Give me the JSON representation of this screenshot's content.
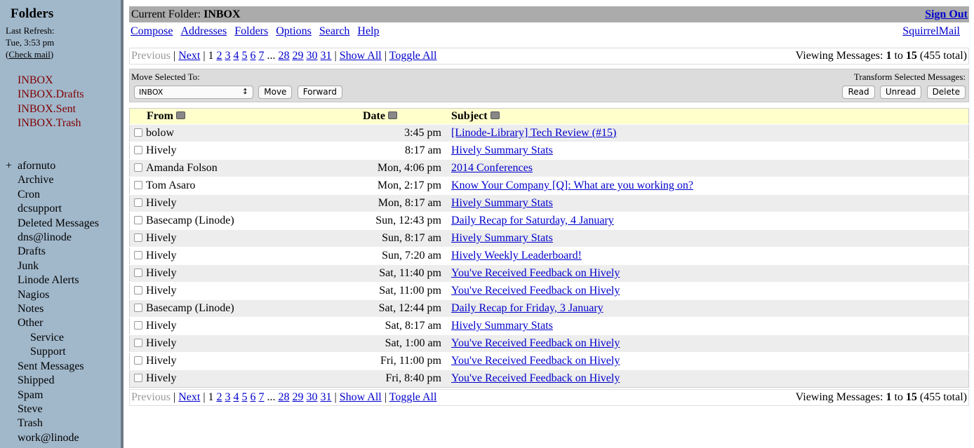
{
  "sidebar": {
    "title": "Folders",
    "last_refresh_label": "Last Refresh:",
    "last_refresh": "Tue, 3:53 pm",
    "check_mail": "Check mail",
    "special_folders": [
      "INBOX",
      "INBOX.Drafts",
      "INBOX.Sent",
      "INBOX.Trash"
    ],
    "folders": [
      {
        "label": "afornuto",
        "expand": "+",
        "level": 0
      },
      {
        "label": "Archive",
        "level": 1
      },
      {
        "label": "Cron",
        "level": 1
      },
      {
        "label": "dcsupport",
        "level": 1
      },
      {
        "label": "Deleted Messages",
        "level": 1
      },
      {
        "label": "dns@linode",
        "level": 1
      },
      {
        "label": "Drafts",
        "level": 1
      },
      {
        "label": "Junk",
        "level": 1
      },
      {
        "label": "Linode Alerts",
        "level": 1
      },
      {
        "label": "Nagios",
        "level": 1
      },
      {
        "label": "Notes",
        "level": 1
      },
      {
        "label": "Other",
        "level": 1
      },
      {
        "label": "Service",
        "level": 2
      },
      {
        "label": "Support",
        "level": 2
      },
      {
        "label": "Sent Messages",
        "level": 1
      },
      {
        "label": "Shipped",
        "level": 1
      },
      {
        "label": "Spam",
        "level": 1
      },
      {
        "label": "Steve",
        "level": 1
      },
      {
        "label": "Trash",
        "level": 1
      },
      {
        "label": "work@linode",
        "level": 1
      }
    ]
  },
  "header": {
    "current_label": "Current Folder:",
    "current_folder": "INBOX",
    "sign_out": "Sign Out",
    "brand": "SquirrelMail",
    "nav": [
      "Compose",
      "Addresses",
      "Folders",
      "Options",
      "Search",
      "Help"
    ]
  },
  "pager": {
    "previous": "Previous",
    "next": "Next",
    "current": "1",
    "pages": [
      "2",
      "3",
      "4",
      "5",
      "6",
      "7"
    ],
    "ellipsis": "...",
    "pages_end": [
      "28",
      "29",
      "30",
      "31"
    ],
    "show_all": "Show All",
    "toggle_all": "Toggle All",
    "viewing_label": "Viewing Messages:",
    "from": "1",
    "to_label": "to",
    "to": "15",
    "total": "(455 total)"
  },
  "controls": {
    "move_label": "Move Selected To:",
    "move_select": "INBOX",
    "move": "Move",
    "forward": "Forward",
    "transform_label": "Transform Selected Messages:",
    "read": "Read",
    "unread": "Unread",
    "delete": "Delete"
  },
  "columns": {
    "from": "From",
    "date": "Date",
    "subject": "Subject"
  },
  "messages": [
    {
      "from": "bolow",
      "date": "3:45 pm",
      "subject": "[Linode-Library] Tech Review (#15)"
    },
    {
      "from": "Hively",
      "date": "8:17 am",
      "subject": "Hively Summary Stats"
    },
    {
      "from": "Amanda Folson",
      "date": "Mon, 4:06 pm",
      "subject": "2014 Conferences"
    },
    {
      "from": "Tom Asaro",
      "date": "Mon, 2:17 pm",
      "subject": "Know Your Company [Q]: What are you working on?"
    },
    {
      "from": "Hively",
      "date": "Mon, 8:17 am",
      "subject": "Hively Summary Stats"
    },
    {
      "from": "Basecamp (Linode)",
      "date": "Sun, 12:43 pm",
      "subject": "Daily Recap for Saturday, 4 January"
    },
    {
      "from": "Hively",
      "date": "Sun, 8:17 am",
      "subject": "Hively Summary Stats"
    },
    {
      "from": "Hively",
      "date": "Sun, 7:20 am",
      "subject": "Hively Weekly Leaderboard!"
    },
    {
      "from": "Hively",
      "date": "Sat, 11:40 pm",
      "subject": "You've Received Feedback on Hively"
    },
    {
      "from": "Hively",
      "date": "Sat, 11:00 pm",
      "subject": "You've Received Feedback on Hively"
    },
    {
      "from": "Basecamp (Linode)",
      "date": "Sat, 12:44 pm",
      "subject": "Daily Recap for Friday, 3 January"
    },
    {
      "from": "Hively",
      "date": "Sat, 8:17 am",
      "subject": "Hively Summary Stats"
    },
    {
      "from": "Hively",
      "date": "Sat, 1:00 am",
      "subject": "You've Received Feedback on Hively"
    },
    {
      "from": "Hively",
      "date": "Fri, 11:00 pm",
      "subject": "You've Received Feedback on Hively"
    },
    {
      "from": "Hively",
      "date": "Fri, 8:40 pm",
      "subject": "You've Received Feedback on Hively"
    }
  ]
}
